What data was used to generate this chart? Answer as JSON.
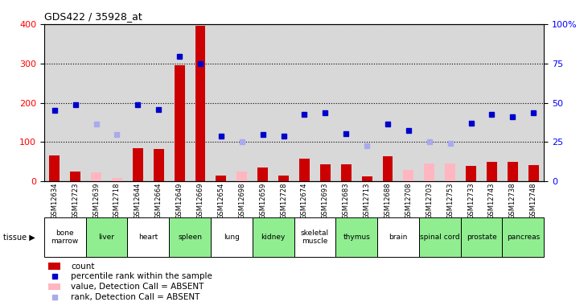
{
  "title": "GDS422 / 35928_at",
  "samples": [
    "GSM12634",
    "GSM12723",
    "GSM12639",
    "GSM12718",
    "GSM12644",
    "GSM12664",
    "GSM12649",
    "GSM12669",
    "GSM12654",
    "GSM12698",
    "GSM12659",
    "GSM12728",
    "GSM12674",
    "GSM12693",
    "GSM12683",
    "GSM12713",
    "GSM12688",
    "GSM12708",
    "GSM12703",
    "GSM12753",
    "GSM12733",
    "GSM12743",
    "GSM12738",
    "GSM12748"
  ],
  "counts": [
    65,
    25,
    null,
    null,
    85,
    82,
    295,
    395,
    15,
    null,
    35,
    15,
    57,
    43,
    43,
    12,
    63,
    null,
    null,
    null,
    38,
    50,
    50,
    42
  ],
  "absent_counts": [
    null,
    null,
    22,
    8,
    null,
    null,
    null,
    null,
    null,
    25,
    null,
    null,
    null,
    null,
    null,
    null,
    null,
    28,
    45,
    45,
    null,
    null,
    null,
    null
  ],
  "ranks": [
    180,
    195,
    null,
    null,
    195,
    183,
    318,
    300,
    115,
    null,
    120,
    115,
    170,
    175,
    122,
    null,
    145,
    130,
    null,
    null,
    148,
    170,
    165,
    175
  ],
  "absent_ranks": [
    null,
    null,
    145,
    120,
    null,
    null,
    null,
    null,
    null,
    100,
    null,
    null,
    null,
    null,
    null,
    90,
    null,
    null,
    100,
    97,
    null,
    null,
    null,
    null
  ],
  "tissues": [
    {
      "name": "bone\nmarrow",
      "start": 0,
      "end": 2,
      "color": "#ffffff"
    },
    {
      "name": "liver",
      "start": 2,
      "end": 4,
      "color": "#90ee90"
    },
    {
      "name": "heart",
      "start": 4,
      "end": 6,
      "color": "#ffffff"
    },
    {
      "name": "spleen",
      "start": 6,
      "end": 8,
      "color": "#90ee90"
    },
    {
      "name": "lung",
      "start": 8,
      "end": 10,
      "color": "#ffffff"
    },
    {
      "name": "kidney",
      "start": 10,
      "end": 12,
      "color": "#90ee90"
    },
    {
      "name": "skeletal\nmuscle",
      "start": 12,
      "end": 14,
      "color": "#ffffff"
    },
    {
      "name": "thymus",
      "start": 14,
      "end": 16,
      "color": "#90ee90"
    },
    {
      "name": "brain",
      "start": 16,
      "end": 18,
      "color": "#ffffff"
    },
    {
      "name": "spinal cord",
      "start": 18,
      "end": 20,
      "color": "#90ee90"
    },
    {
      "name": "prostate",
      "start": 20,
      "end": 22,
      "color": "#90ee90"
    },
    {
      "name": "pancreas",
      "start": 22,
      "end": 24,
      "color": "#90ee90"
    }
  ],
  "ylim_left": [
    0,
    400
  ],
  "ylim_right": [
    0,
    100
  ],
  "yticks_left": [
    0,
    100,
    200,
    300,
    400
  ],
  "yticks_right": [
    0,
    25,
    50,
    75,
    100
  ],
  "ytick_labels_right": [
    "0",
    "25",
    "50",
    "75",
    "100%"
  ],
  "bar_color": "#cc0000",
  "bar_absent_color": "#ffb6c1",
  "rank_color": "#0000cc",
  "rank_absent_color": "#aaaaee",
  "bar_width": 0.5
}
